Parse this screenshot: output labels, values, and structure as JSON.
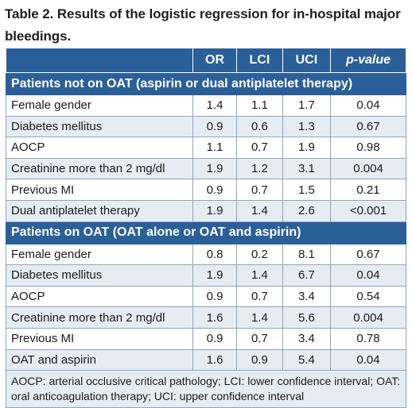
{
  "title": "Table 2. Results of the logistic regression for in-hospital major bleedings.",
  "headers": [
    "",
    "OR",
    "LCI",
    "UCI",
    "p-value"
  ],
  "sections": [
    {
      "label": "Patients not on OAT (aspirin or dual antiplatelet therapy)",
      "rows": [
        {
          "name": "Female gender",
          "or": "1.4",
          "lci": "1.1",
          "uci": "1.7",
          "p": "0.04"
        },
        {
          "name": "Diabetes mellitus",
          "or": "0.9",
          "lci": "0.6",
          "uci": "1.3",
          "p": "0.67"
        },
        {
          "name": "AOCP",
          "or": "1.1",
          "lci": "0.7",
          "uci": "1.9",
          "p": "0.98"
        },
        {
          "name": "Creatinine more than 2 mg/dl",
          "or": "1.9",
          "lci": "1.2",
          "uci": "3.1",
          "p": "0.004"
        },
        {
          "name": "Previous MI",
          "or": "0.9",
          "lci": "0.7",
          "uci": "1.5",
          "p": "0.21"
        },
        {
          "name": "Dual antiplatelet therapy",
          "or": "1.9",
          "lci": "1.4",
          "uci": "2.6",
          "p": "<0.001"
        }
      ]
    },
    {
      "label": "Patients on OAT (OAT alone or OAT and aspirin)",
      "rows": [
        {
          "name": "Female gender",
          "or": "0.8",
          "lci": "0.2",
          "uci": "8.1",
          "p": "0.67"
        },
        {
          "name": "Diabetes mellitus",
          "or": "1.9",
          "lci": "1.4",
          "uci": "6.7",
          "p": "0.04"
        },
        {
          "name": "AOCP",
          "or": "0.9",
          "lci": "0.7",
          "uci": "3.4",
          "p": "0.54"
        },
        {
          "name": "Creatinine more than 2 mg/dl",
          "or": "1.6",
          "lci": "1.4",
          "uci": "5.6",
          "p": "0.004"
        },
        {
          "name": "Previous MI",
          "or": "0.9",
          "lci": "0.7",
          "uci": "3.4",
          "p": "0.78"
        },
        {
          "name": "OAT and aspirin",
          "or": "1.6",
          "lci": "0.9",
          "uci": "5.4",
          "p": "0.04"
        }
      ]
    }
  ],
  "footnote": "AOCP: arterial occlusive critical pathology; LCI: lower confidence interval; OAT: oral anticoagulation therapy; UCI: upper confidence interval",
  "colors": {
    "header_bg": "#2b5f9a",
    "stripe": "#e6ecf4",
    "border": "#8fa6bb"
  }
}
